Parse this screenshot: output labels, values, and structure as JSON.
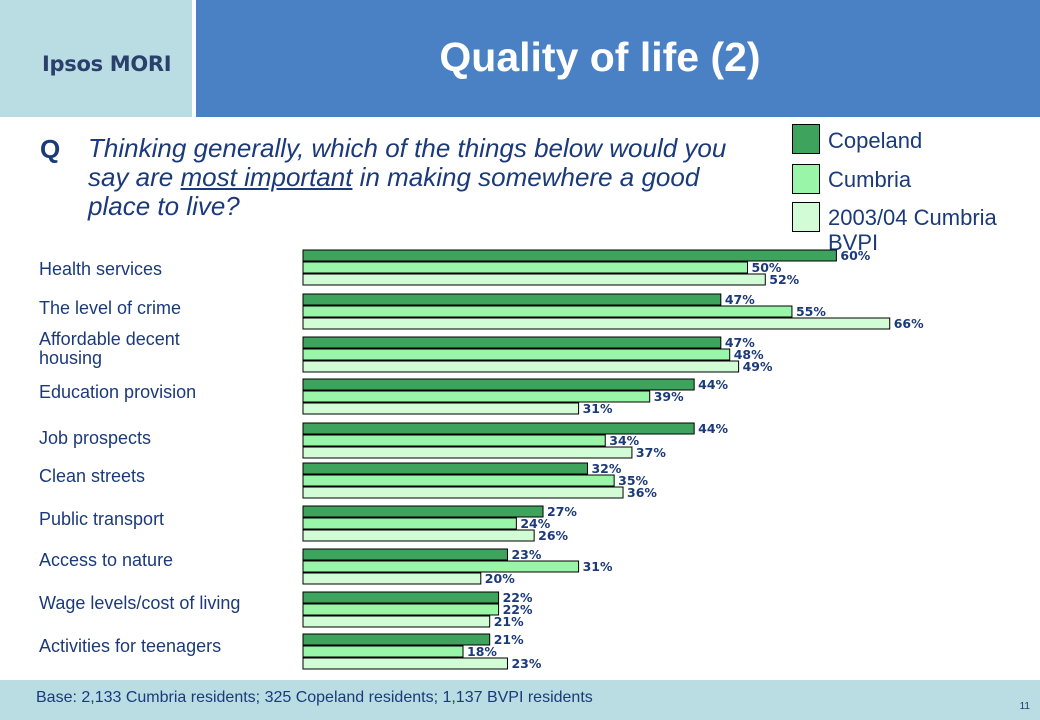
{
  "header": {
    "logo": "Ipsos MORI",
    "title": "Quality of life (2)"
  },
  "question": {
    "prefix": "Q",
    "text_before": "Thinking generally, which of the things below would you say are ",
    "text_underlined": "most important",
    "text_after": " in making somewhere a good place to live?"
  },
  "legend": [
    {
      "label": "Copeland",
      "color": "#3da35d"
    },
    {
      "label": "Cumbria",
      "color": "#99f5a8"
    },
    {
      "label": "2003/04 Cumbria BVPI",
      "color": "#d2fcd5"
    }
  ],
  "chart_data": {
    "type": "bar",
    "orientation": "horizontal",
    "title": "Quality of life (2)",
    "categories": [
      "Health services",
      "The level of crime",
      "Affordable decent housing",
      "Education provision",
      "Job prospects",
      "Clean streets",
      "Public transport",
      "Access to nature",
      "Wage levels/cost of living",
      "Activities for teenagers"
    ],
    "series": [
      {
        "name": "Copeland",
        "color": "#3da35d",
        "values": [
          60,
          47,
          47,
          44,
          44,
          32,
          27,
          23,
          22,
          21
        ]
      },
      {
        "name": "Cumbria",
        "color": "#99f5a8",
        "values": [
          50,
          55,
          48,
          39,
          34,
          35,
          24,
          31,
          22,
          18
        ]
      },
      {
        "name": "2003/04 Cumbria BVPI",
        "color": "#d2fcd5",
        "values": [
          52,
          66,
          49,
          31,
          37,
          36,
          26,
          20,
          21,
          23
        ]
      }
    ],
    "value_suffix": "%",
    "xlim": [
      0,
      66
    ],
    "grid": false,
    "legend_position": "top-right"
  },
  "footer": {
    "base": "Base: 2,133 Cumbria residents; 325 Copeland residents; 1,137 BVPI residents",
    "page_number": "11"
  }
}
